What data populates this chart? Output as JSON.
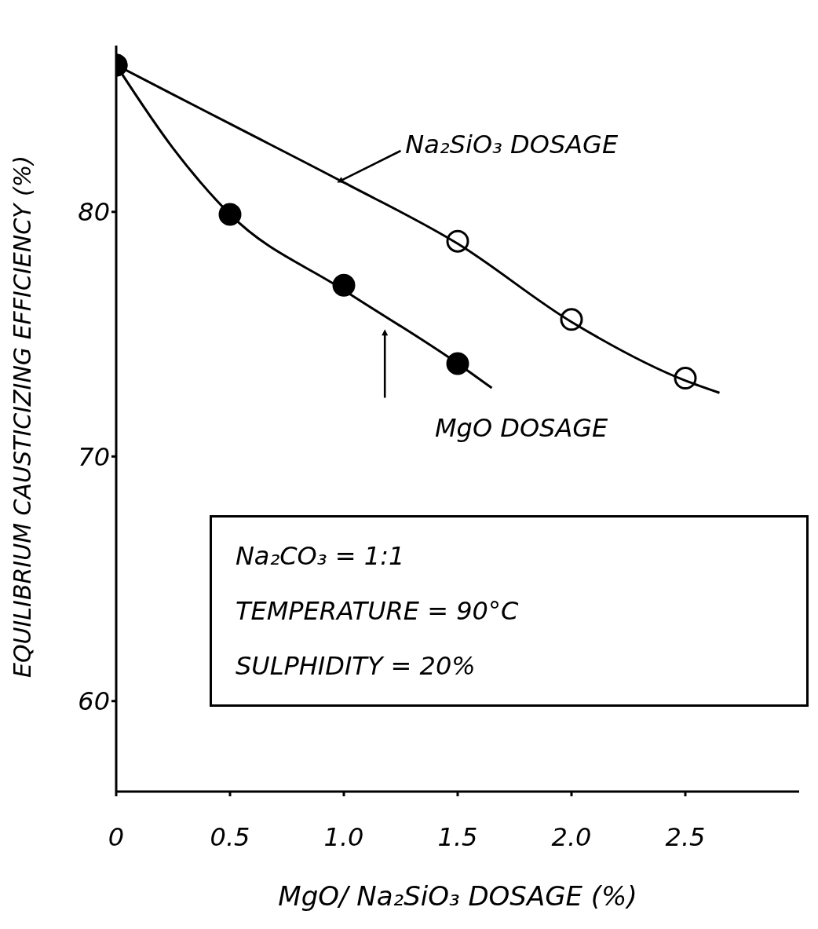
{
  "chart_data": {
    "type": "line",
    "xlabel": "MgO/ Na₂SiO₃ DOSAGE (%)",
    "ylabel": "EQUILIBRIUM CAUSTICIZING EFFICIENCY (%)",
    "xlim": [
      0,
      3.0
    ],
    "ylim": [
      56.3,
      86.8
    ],
    "xticks": [
      0,
      0.5,
      {
        "value": 1,
        "label": "1.0"
      },
      1.5,
      {
        "value": 2,
        "label": "2.0"
      },
      2.5
    ],
    "yticks": [
      60,
      70,
      80
    ],
    "series": [
      {
        "type": "scatter",
        "color": "#ffffff",
        "marker": "circle",
        "x": [
          0,
          1.5,
          2.0,
          2.5
        ],
        "values": [
          86,
          78.8,
          75.6,
          73.2
        ]
      },
      {
        "type": "scatter",
        "color": "#000000",
        "marker": "circle",
        "x": [
          0,
          0.5,
          1.0,
          1.5
        ],
        "values": [
          86,
          79.9,
          77.0,
          73.8
        ]
      },
      {
        "name": "Na₂SiO₃ DOSAGE",
        "color": "#000000",
        "x": [
          0,
          0.5,
          1.0,
          1.5,
          2.0,
          2.5,
          2.65
        ],
        "values": [
          86,
          83.6,
          81.2,
          78.7,
          75.5,
          73.1,
          72.6
        ]
      },
      {
        "name": "MgO DOSAGE",
        "color": "#000000",
        "x": [
          0,
          0.25,
          0.5,
          1.0,
          1.5,
          1.65
        ],
        "values": [
          86,
          82.6,
          79.9,
          76.8,
          73.8,
          72.8
        ]
      }
    ],
    "annotations": [
      "Na₂CO₃ = 1:1",
      "TEMPERATURE = 90°C",
      "SULPHIDITY = 20%"
    ]
  }
}
